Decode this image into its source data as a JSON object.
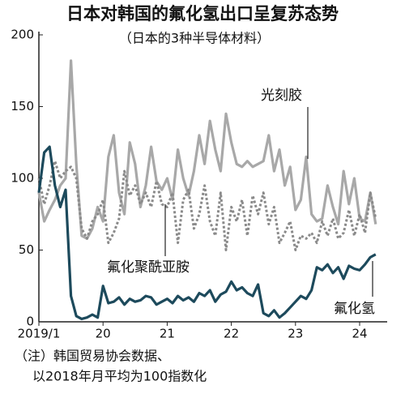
{
  "chart_data": {
    "type": "line",
    "title": "日本对韩国的氟化氢出口呈复苏态势",
    "subtitle": "（日本的3种半导体材料）",
    "categories": [
      "2019/1",
      null,
      null,
      null,
      null,
      null,
      null,
      null,
      null,
      null,
      null,
      null,
      "20",
      null,
      null,
      null,
      null,
      null,
      null,
      null,
      null,
      null,
      null,
      null,
      "21",
      null,
      null,
      null,
      null,
      null,
      null,
      null,
      null,
      null,
      null,
      null,
      "22",
      null,
      null,
      null,
      null,
      null,
      null,
      null,
      null,
      null,
      null,
      null,
      "23",
      null,
      null,
      null,
      null,
      null,
      null,
      null,
      null,
      null,
      null,
      null,
      "24",
      null,
      null,
      null
    ],
    "series": [
      {
        "name": "光刻胶",
        "color": "#a8a8a8",
        "dash": false,
        "values": [
          90,
          70,
          78,
          85,
          95,
          100,
          182,
          110,
          60,
          58,
          65,
          80,
          70,
          115,
          130,
          90,
          75,
          125,
          110,
          80,
          95,
          122,
          98,
          92,
          100,
          85,
          120,
          100,
          88,
          105,
          130,
          110,
          140,
          120,
          105,
          145,
          125,
          110,
          108,
          112,
          108,
          110,
          112,
          130,
          105,
          120,
          95,
          108,
          78,
          85,
          115,
          75,
          70,
          72,
          95,
          80,
          68,
          105,
          82,
          100,
          72,
          70,
          90,
          68
        ]
      },
      {
        "name": "氟化聚酰亚胺",
        "color": "#8a8a8a",
        "dash": true,
        "values": [
          100,
          82,
          95,
          112,
          100,
          105,
          108,
          100,
          65,
          58,
          70,
          75,
          85,
          55,
          62,
          72,
          105,
          88,
          95,
          82,
          90,
          80,
          98,
          82,
          80,
          90,
          55,
          85,
          92,
          65,
          75,
          95,
          70,
          60,
          90,
          50,
          80,
          70,
          85,
          60,
          88,
          75,
          90,
          68,
          80,
          55,
          62,
          70,
          50,
          60,
          58,
          62,
          55,
          70,
          60,
          72,
          58,
          62,
          78,
          60,
          75,
          62,
          90,
          72
        ]
      },
      {
        "name": "氟化氢",
        "color": "#1d4a5c",
        "dash": false,
        "values": [
          90,
          118,
          122,
          95,
          80,
          92,
          18,
          4,
          2,
          3,
          5,
          3,
          25,
          13,
          14,
          17,
          12,
          16,
          14,
          15,
          18,
          17,
          12,
          14,
          16,
          13,
          18,
          15,
          17,
          14,
          20,
          18,
          22,
          14,
          19,
          21,
          28,
          22,
          24,
          20,
          18,
          26,
          6,
          4,
          8,
          3,
          6,
          10,
          14,
          18,
          16,
          22,
          38,
          36,
          40,
          34,
          38,
          30,
          39,
          37,
          36,
          40,
          45,
          47
        ]
      }
    ],
    "ylim": [
      0,
      200
    ],
    "yticks": [
      0,
      50,
      100,
      150,
      200
    ],
    "notes": [
      "（注）韩国贸易协会数据、",
      "以2018年月平均为100指数化"
    ]
  }
}
